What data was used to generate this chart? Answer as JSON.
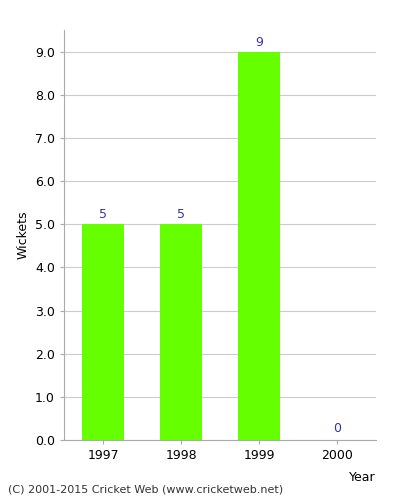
{
  "years": [
    "1997",
    "1998",
    "1999",
    "2000"
  ],
  "values": [
    5,
    5,
    9,
    0
  ],
  "bar_color": "#66ff00",
  "label_color": "#3333aa",
  "ylabel": "Wickets",
  "xlabel": "Year",
  "ylim": [
    0,
    9.5
  ],
  "yticks": [
    0.0,
    1.0,
    2.0,
    3.0,
    4.0,
    5.0,
    6.0,
    7.0,
    8.0,
    9.0
  ],
  "background_color": "#ffffff",
  "plot_bg_color": "#ffffff",
  "footer_text": "(C) 2001-2015 Cricket Web (www.cricketweb.net)",
  "grid_color": "#cccccc",
  "label_fontsize": 9,
  "axis_fontsize": 9,
  "footer_fontsize": 8
}
